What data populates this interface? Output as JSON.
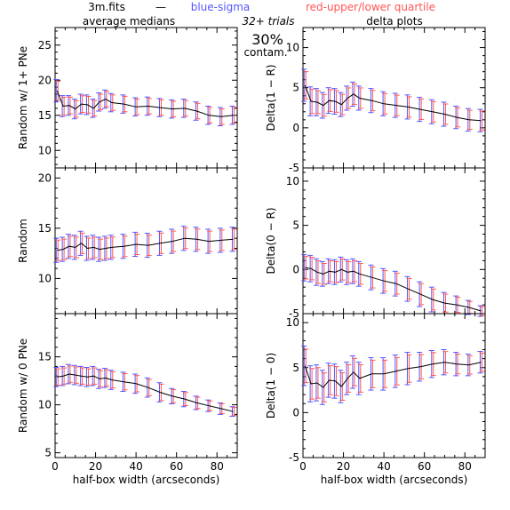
{
  "header": {
    "file": "3m.fits",
    "dash": "—",
    "blue_label": "blue-sigma",
    "red_label": "red-upper/lower quartile",
    "col_left": "average medians",
    "col_right": "delta plots",
    "trials": "32+ trials",
    "contam_pct": "30%",
    "contam_word": "contam."
  },
  "colors": {
    "line": "#000000",
    "sigma": "#5555ff",
    "quartile": "#ff5555"
  },
  "chart_data": [
    {
      "type": "line",
      "panel": "r1",
      "col": "left",
      "row": 0,
      "xlabel": "",
      "ylabel": "Random w/ 1+ PNe",
      "xlim": [
        0,
        90
      ],
      "ylim": [
        7.5,
        27.5
      ],
      "xticks": [
        0,
        20,
        40,
        60,
        80
      ],
      "yticks": [
        10,
        15,
        20,
        25
      ],
      "x": [
        1,
        4,
        7,
        10,
        13,
        16,
        19,
        22,
        25,
        28,
        34,
        40,
        46,
        52,
        58,
        64,
        70,
        76,
        82,
        88
      ],
      "y": [
        18.5,
        16.3,
        16.4,
        15.9,
        16.6,
        16.5,
        16.0,
        16.9,
        17.3,
        16.8,
        16.6,
        16.2,
        16.3,
        16.1,
        15.9,
        16.0,
        15.6,
        15.0,
        14.8,
        15.0
      ],
      "err": [
        1.6,
        1.5,
        1.4,
        1.4,
        1.4,
        1.4,
        1.3,
        1.3,
        1.3,
        1.3,
        1.3,
        1.3,
        1.3,
        1.3,
        1.3,
        1.3,
        1.3,
        1.3,
        1.3,
        1.3
      ]
    },
    {
      "type": "line",
      "panel": "r2",
      "col": "left",
      "row": 1,
      "xlabel": "",
      "ylabel": "Random",
      "xlim": [
        0,
        90
      ],
      "ylim": [
        6.5,
        21
      ],
      "xticks": [
        0,
        20,
        40,
        60,
        80
      ],
      "yticks": [
        10,
        15,
        20
      ],
      "x": [
        1,
        4,
        7,
        10,
        13,
        16,
        19,
        22,
        25,
        28,
        34,
        40,
        46,
        52,
        58,
        64,
        70,
        76,
        82,
        88
      ],
      "y": [
        12.8,
        12.9,
        13.2,
        13.1,
        13.5,
        13.0,
        13.1,
        12.9,
        13.0,
        13.1,
        13.2,
        13.4,
        13.3,
        13.5,
        13.7,
        14.0,
        13.9,
        13.7,
        13.8,
        13.9
      ],
      "err": [
        1.2,
        1.2,
        1.2,
        1.2,
        1.2,
        1.2,
        1.2,
        1.2,
        1.2,
        1.2,
        1.2,
        1.2,
        1.2,
        1.2,
        1.2,
        1.2,
        1.2,
        1.2,
        1.2,
        1.2
      ]
    },
    {
      "type": "line",
      "panel": "r0",
      "col": "left",
      "row": 2,
      "xlabel": "half-box width (arcseconds)",
      "ylabel": "Random w/ 0 PNe",
      "xlim": [
        0,
        90
      ],
      "ylim": [
        4.5,
        19.5
      ],
      "xticks": [
        0,
        20,
        40,
        60,
        80
      ],
      "yticks": [
        5,
        10,
        15
      ],
      "x": [
        1,
        4,
        7,
        10,
        13,
        16,
        19,
        22,
        25,
        28,
        34,
        40,
        46,
        52,
        58,
        64,
        70,
        76,
        82,
        88
      ],
      "y": [
        12.9,
        13.0,
        13.2,
        13.1,
        13.0,
        12.9,
        13.0,
        12.7,
        12.8,
        12.6,
        12.4,
        12.2,
        11.8,
        11.3,
        10.9,
        10.6,
        10.2,
        9.9,
        9.6,
        9.3
      ],
      "err": [
        1.0,
        1.0,
        1.0,
        1.0,
        1.0,
        1.0,
        1.0,
        1.0,
        1.0,
        1.0,
        1.0,
        1.0,
        1.0,
        1.0,
        0.8,
        0.8,
        0.7,
        0.6,
        0.6,
        0.5
      ]
    },
    {
      "type": "line",
      "panel": "d1r",
      "col": "right",
      "row": 0,
      "xlabel": "",
      "ylabel": "Delta(1 − R)",
      "xlim": [
        0,
        90
      ],
      "ylim": [
        -5,
        12.5
      ],
      "xticks": [
        0,
        20,
        40,
        60,
        80
      ],
      "yticks": [
        -5,
        0,
        5,
        10
      ],
      "x": [
        1,
        4,
        7,
        10,
        13,
        16,
        19,
        22,
        25,
        28,
        34,
        40,
        46,
        52,
        58,
        64,
        70,
        76,
        82,
        88
      ],
      "y": [
        5.3,
        3.3,
        3.2,
        2.8,
        3.4,
        3.3,
        2.9,
        3.7,
        4.2,
        3.7,
        3.4,
        3.0,
        2.8,
        2.6,
        2.3,
        2.0,
        1.7,
        1.3,
        1.0,
        0.9
      ],
      "err": [
        2.0,
        1.8,
        1.7,
        1.6,
        1.6,
        1.6,
        1.5,
        1.5,
        1.5,
        1.5,
        1.5,
        1.5,
        1.5,
        1.5,
        1.5,
        1.5,
        1.5,
        1.4,
        1.4,
        1.4
      ]
    },
    {
      "type": "line",
      "panel": "d0r",
      "col": "right",
      "row": 1,
      "xlabel": "",
      "ylabel": "Delta(0 − R)",
      "xlim": [
        0,
        90
      ],
      "ylim": [
        -5,
        11.5
      ],
      "xticks": [
        0,
        20,
        40,
        60,
        80
      ],
      "yticks": [
        -5,
        0,
        5,
        10
      ],
      "x": [
        1,
        4,
        7,
        10,
        13,
        16,
        19,
        22,
        25,
        28,
        34,
        40,
        46,
        52,
        58,
        64,
        70,
        76,
        82,
        88
      ],
      "y": [
        0.2,
        0.1,
        -0.3,
        -0.5,
        -0.2,
        -0.3,
        0.0,
        -0.3,
        -0.2,
        -0.5,
        -0.9,
        -1.3,
        -1.6,
        -2.2,
        -2.8,
        -3.4,
        -3.8,
        -4.0,
        -4.3,
        -4.7
      ],
      "err": [
        1.5,
        1.5,
        1.5,
        1.4,
        1.4,
        1.4,
        1.4,
        1.4,
        1.4,
        1.4,
        1.4,
        1.4,
        1.4,
        1.4,
        1.4,
        1.4,
        1.2,
        1.0,
        0.8,
        0.6
      ]
    },
    {
      "type": "line",
      "panel": "d10",
      "col": "right",
      "row": 2,
      "xlabel": "half-box width (arcseconds)",
      "ylabel": "Delta(1 − 0)",
      "xlim": [
        0,
        90
      ],
      "ylim": [
        -5,
        11
      ],
      "xticks": [
        0,
        20,
        40,
        60,
        80
      ],
      "yticks": [
        -5,
        0,
        5,
        10
      ],
      "x": [
        1,
        4,
        7,
        10,
        13,
        16,
        19,
        22,
        25,
        28,
        34,
        40,
        46,
        52,
        58,
        64,
        70,
        76,
        82,
        88
      ],
      "y": [
        5.2,
        3.2,
        3.3,
        2.8,
        3.6,
        3.5,
        2.9,
        3.8,
        4.5,
        3.8,
        4.3,
        4.3,
        4.6,
        4.9,
        5.1,
        5.4,
        5.6,
        5.4,
        5.3,
        5.6
      ],
      "err": [
        2.2,
        2.0,
        2.0,
        1.9,
        1.9,
        1.9,
        1.8,
        1.8,
        1.8,
        1.8,
        1.8,
        1.8,
        1.8,
        1.8,
        1.6,
        1.5,
        1.4,
        1.3,
        1.2,
        1.2
      ]
    }
  ]
}
